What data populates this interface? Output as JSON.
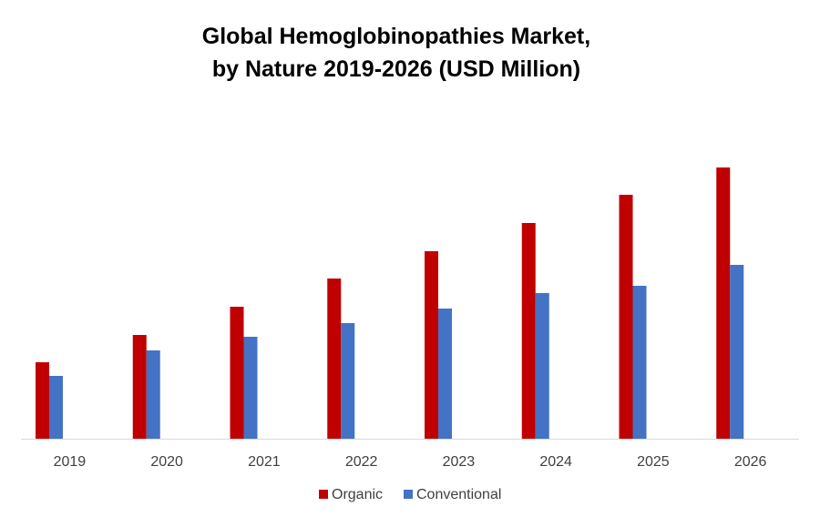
{
  "chart_data": {
    "type": "bar",
    "title_lines": [
      "Global Hemoglobinopathies Market,",
      "by Nature 2019-2026 (USD Million)"
    ],
    "categories": [
      "2019",
      "2020",
      "2021",
      "2022",
      "2023",
      "2024",
      "2025",
      "2026"
    ],
    "series": [
      {
        "name": "Organic",
        "color": "#c00000",
        "values": [
          84,
          114,
          145,
          176,
          206,
          237,
          268,
          298
        ]
      },
      {
        "name": "Conventional",
        "color": "#4472c4",
        "values": [
          69,
          97,
          112,
          127,
          143,
          160,
          168,
          191
        ]
      }
    ],
    "ylim": [
      0,
      310
    ],
    "y_axis_visible": false,
    "grid": false,
    "legend_position": "bottom"
  }
}
